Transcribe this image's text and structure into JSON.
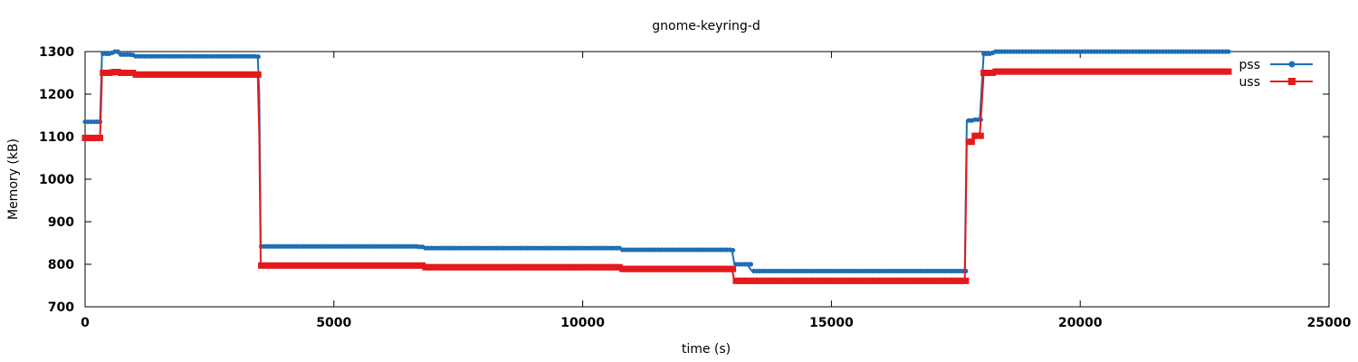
{
  "chart_data": {
    "type": "line",
    "title": "gnome-keyring-d",
    "xlabel": "time (s)",
    "ylabel": "Memory (kB)",
    "xlim": [
      0,
      25000
    ],
    "ylim": [
      700,
      1300
    ],
    "xticks": [
      0,
      5000,
      10000,
      15000,
      20000,
      25000
    ],
    "yticks": [
      700,
      800,
      900,
      1000,
      1100,
      1200,
      1300
    ],
    "grid": false,
    "legend_position": "top-right",
    "series": [
      {
        "name": "pss",
        "color": "#1f6db5",
        "marker": "circle",
        "points": [
          [
            0,
            1135
          ],
          [
            300,
            1135
          ],
          [
            340,
            1295
          ],
          [
            500,
            1297
          ],
          [
            600,
            1300
          ],
          [
            700,
            1293
          ],
          [
            950,
            1292
          ],
          [
            1000,
            1289
          ],
          [
            3470,
            1288
          ],
          [
            3500,
            1200
          ],
          [
            3530,
            842
          ],
          [
            6700,
            841
          ],
          [
            6800,
            838
          ],
          [
            10700,
            838
          ],
          [
            10800,
            834
          ],
          [
            13000,
            833
          ],
          [
            13050,
            800
          ],
          [
            13300,
            800
          ],
          [
            13400,
            784
          ],
          [
            17680,
            784
          ],
          [
            17720,
            1138
          ],
          [
            17840,
            1136
          ],
          [
            17880,
            1140
          ],
          [
            17980,
            1140
          ],
          [
            18060,
            1295
          ],
          [
            18200,
            1297
          ],
          [
            18300,
            1300
          ],
          [
            23000,
            1300
          ]
        ]
      },
      {
        "name": "uss",
        "color": "#e31a1c",
        "marker": "square",
        "points": [
          [
            0,
            1097
          ],
          [
            300,
            1097
          ],
          [
            340,
            1250
          ],
          [
            500,
            1251
          ],
          [
            600,
            1252
          ],
          [
            700,
            1250
          ],
          [
            950,
            1250
          ],
          [
            1000,
            1246
          ],
          [
            3470,
            1246
          ],
          [
            3500,
            1100
          ],
          [
            3530,
            797
          ],
          [
            6700,
            797
          ],
          [
            6800,
            793
          ],
          [
            10700,
            793
          ],
          [
            10800,
            789
          ],
          [
            13000,
            789
          ],
          [
            13050,
            761
          ],
          [
            17680,
            761
          ],
          [
            17720,
            1088
          ],
          [
            17840,
            1088
          ],
          [
            17880,
            1102
          ],
          [
            17980,
            1102
          ],
          [
            18060,
            1250
          ],
          [
            18300,
            1253
          ],
          [
            23000,
            1253
          ]
        ]
      }
    ]
  }
}
